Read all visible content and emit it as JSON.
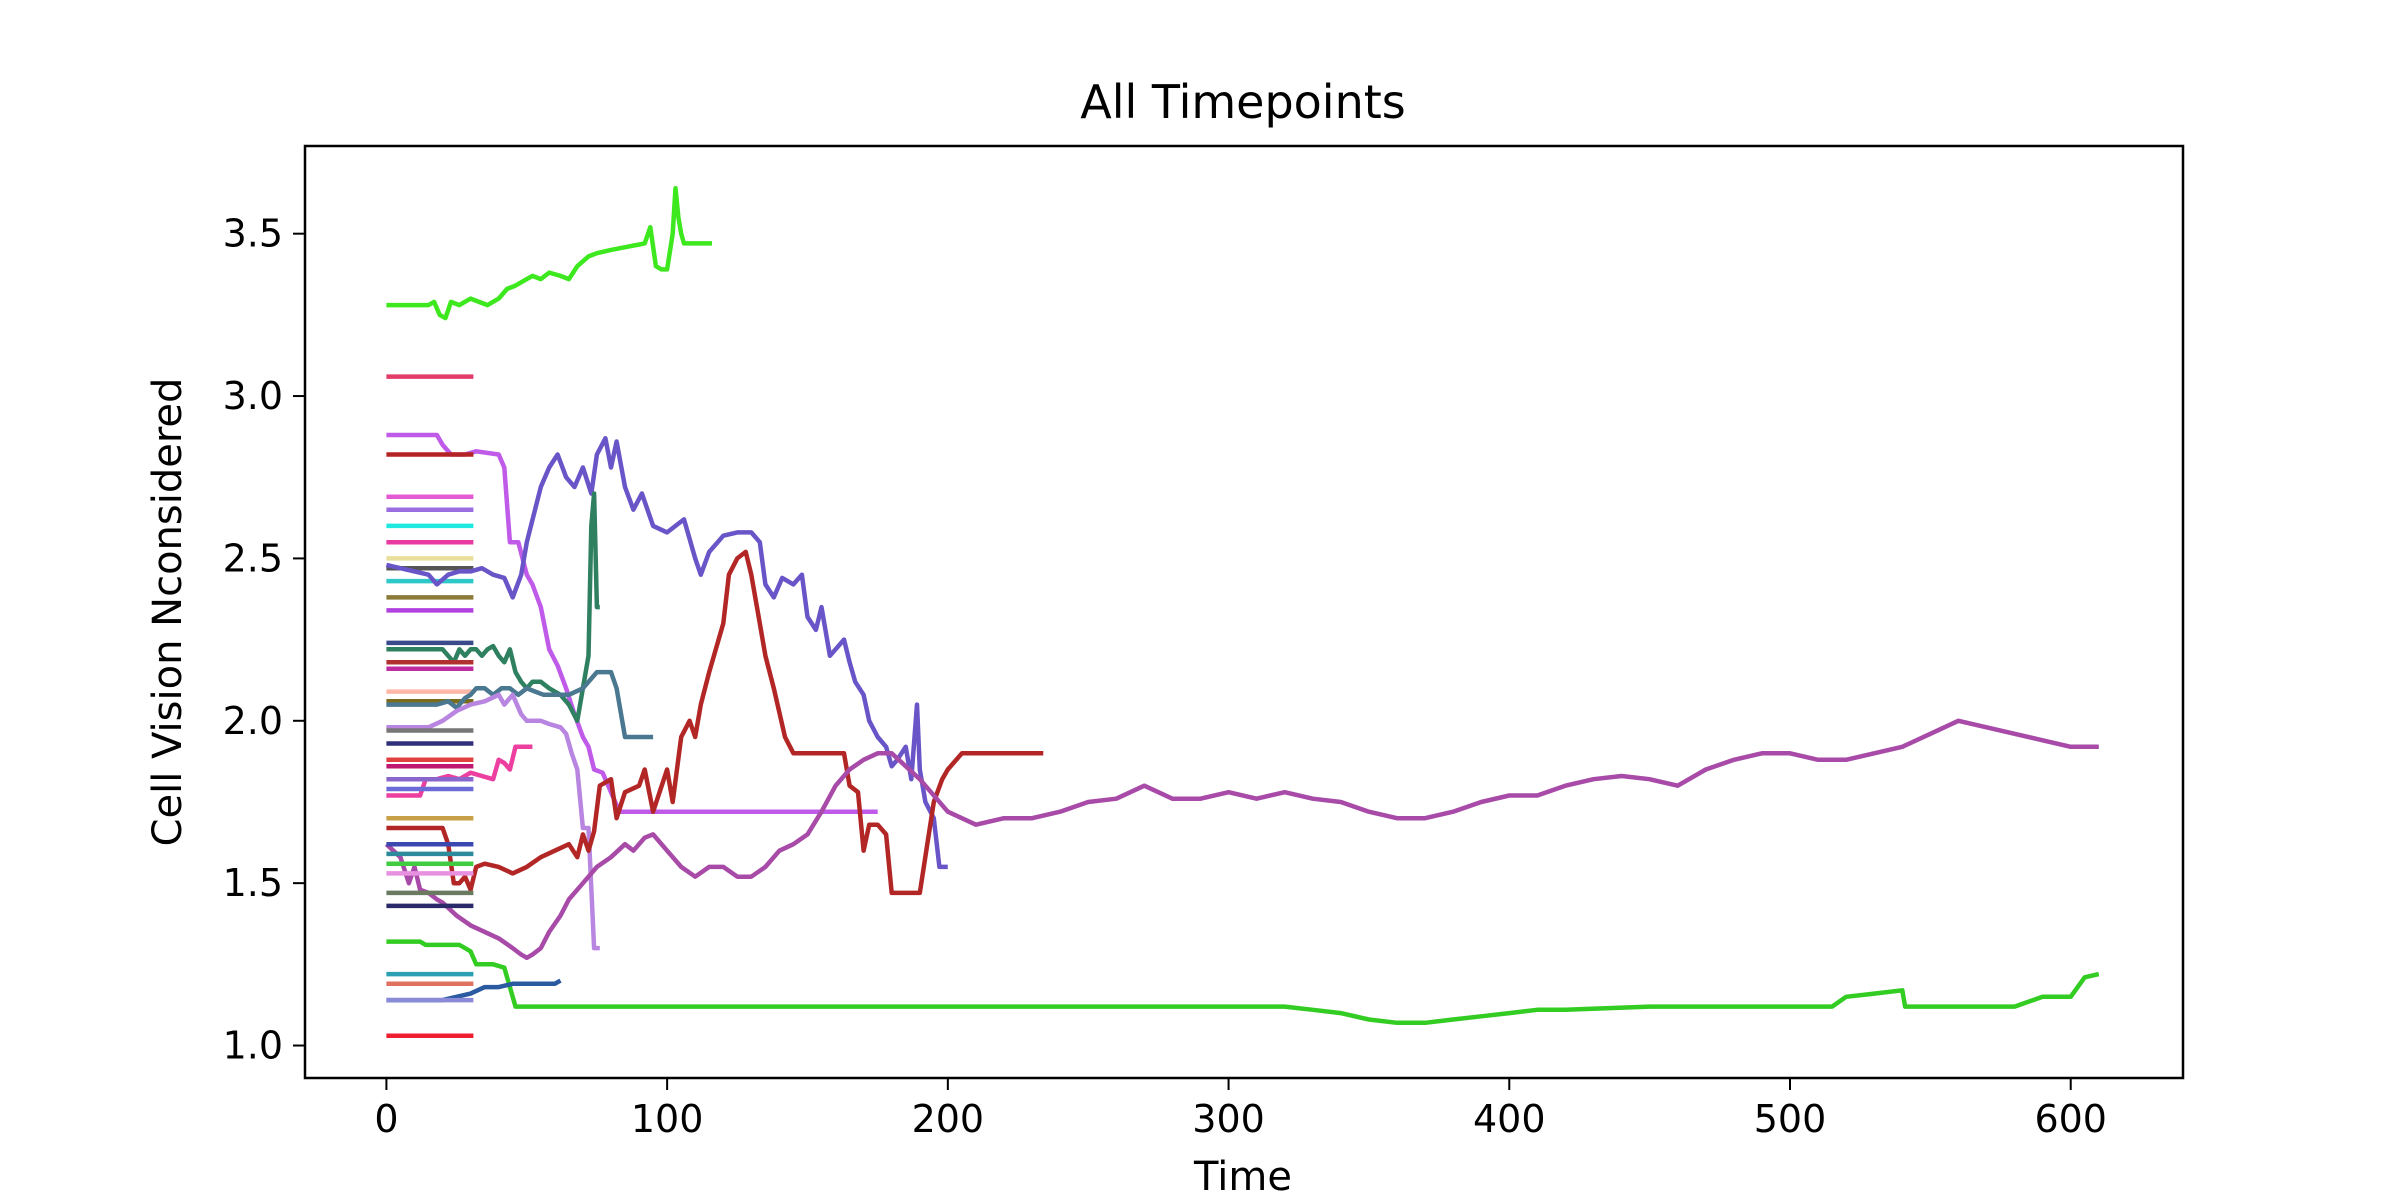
{
  "chart_data": {
    "type": "line",
    "title": "All Timepoints",
    "xlabel": "Time",
    "ylabel": "Cell Vision Nconsidered",
    "xlim": [
      -29,
      640
    ],
    "ylim": [
      0.9,
      3.77
    ],
    "xticks": [
      0,
      100,
      200,
      300,
      400,
      500,
      600
    ],
    "yticks": [
      1.0,
      1.5,
      2.0,
      2.5,
      3.0,
      3.5
    ],
    "grid": false,
    "legend": "none",
    "series": [
      {
        "color": "#3ee81f",
        "x": [
          0,
          15,
          17,
          19,
          21,
          23,
          26,
          30,
          33,
          36,
          40,
          43,
          46,
          50,
          52,
          55,
          58,
          62,
          65,
          68,
          72,
          75,
          80,
          86,
          92,
          94,
          96,
          98,
          100,
          102,
          103,
          104,
          105,
          106,
          108,
          112,
          116
        ],
        "y": [
          3.28,
          3.28,
          3.29,
          3.25,
          3.24,
          3.29,
          3.28,
          3.3,
          3.29,
          3.28,
          3.3,
          3.33,
          3.34,
          3.36,
          3.37,
          3.36,
          3.38,
          3.37,
          3.36,
          3.4,
          3.43,
          3.44,
          3.45,
          3.46,
          3.47,
          3.52,
          3.4,
          3.39,
          3.39,
          3.5,
          3.64,
          3.55,
          3.5,
          3.47,
          3.47,
          3.47,
          3.47
        ]
      },
      {
        "color": "#e23c69",
        "x": [
          0,
          31
        ],
        "y": [
          3.06,
          3.06
        ]
      },
      {
        "color": "#c05ae8",
        "x": [
          0,
          18,
          20,
          23,
          28,
          32,
          40,
          42,
          44,
          47,
          50,
          52,
          55,
          58,
          61,
          64,
          67,
          70,
          72,
          74,
          77,
          80,
          83,
          86,
          90,
          100,
          120,
          150,
          175
        ],
        "y": [
          2.88,
          2.88,
          2.85,
          2.82,
          2.82,
          2.83,
          2.82,
          2.78,
          2.55,
          2.55,
          2.45,
          2.42,
          2.35,
          2.22,
          2.17,
          2.1,
          2.02,
          1.95,
          1.92,
          1.85,
          1.84,
          1.78,
          1.72,
          1.72,
          1.72,
          1.72,
          1.72,
          1.72,
          1.72
        ]
      },
      {
        "color": "#b52424",
        "x": [
          0,
          31
        ],
        "y": [
          2.82,
          2.82
        ]
      },
      {
        "color": "#e45ad5",
        "x": [
          0,
          31
        ],
        "y": [
          2.69,
          2.69
        ]
      },
      {
        "color": "#9a6de0",
        "x": [
          0,
          31
        ],
        "y": [
          2.65,
          2.65
        ]
      },
      {
        "color": "#1ee8e0",
        "x": [
          0,
          31
        ],
        "y": [
          2.6,
          2.6
        ]
      },
      {
        "color": "#e83aa0",
        "x": [
          0,
          31
        ],
        "y": [
          2.55,
          2.55
        ]
      },
      {
        "color": "#e8e09a",
        "x": [
          0,
          31
        ],
        "y": [
          2.5,
          2.5
        ]
      },
      {
        "color": "#555555",
        "x": [
          0,
          31
        ],
        "y": [
          2.47,
          2.47
        ]
      },
      {
        "color": "#2ec8c8",
        "x": [
          0,
          31
        ],
        "y": [
          2.43,
          2.43
        ]
      },
      {
        "color": "#8b7a3a",
        "x": [
          0,
          31
        ],
        "y": [
          2.38,
          2.38
        ]
      },
      {
        "color": "#b040e0",
        "x": [
          0,
          31
        ],
        "y": [
          2.34,
          2.34
        ]
      },
      {
        "color": "#6a55c8",
        "x": [
          0,
          15,
          18,
          22,
          26,
          30,
          34,
          38,
          42,
          45,
          48,
          50,
          55,
          58,
          61,
          64,
          67,
          70,
          73,
          75,
          78,
          80,
          82,
          85,
          88,
          91,
          95,
          100,
          103,
          106,
          110,
          112,
          115,
          118,
          120,
          125,
          130,
          133,
          135,
          138,
          141,
          145,
          148,
          150,
          153,
          155,
          158,
          160,
          163,
          165,
          167,
          170,
          172,
          175,
          178,
          180,
          182,
          185,
          187,
          189,
          190,
          192,
          195,
          197,
          200
        ],
        "y": [
          2.48,
          2.45,
          2.42,
          2.45,
          2.46,
          2.46,
          2.47,
          2.45,
          2.44,
          2.38,
          2.45,
          2.55,
          2.72,
          2.78,
          2.82,
          2.75,
          2.72,
          2.78,
          2.7,
          2.82,
          2.87,
          2.78,
          2.86,
          2.72,
          2.65,
          2.7,
          2.6,
          2.58,
          2.6,
          2.62,
          2.5,
          2.45,
          2.52,
          2.55,
          2.57,
          2.58,
          2.58,
          2.55,
          2.42,
          2.38,
          2.44,
          2.42,
          2.45,
          2.32,
          2.28,
          2.35,
          2.2,
          2.22,
          2.25,
          2.18,
          2.12,
          2.08,
          2.0,
          1.95,
          1.92,
          1.86,
          1.88,
          1.92,
          1.82,
          2.05,
          1.85,
          1.75,
          1.7,
          1.55,
          1.55
        ]
      },
      {
        "color": "#2f8060",
        "x": [
          0,
          20,
          22,
          24,
          26,
          28,
          30,
          32,
          34,
          36,
          38,
          40,
          42,
          44,
          46,
          48,
          50,
          52,
          55,
          58,
          62,
          65,
          68,
          70,
          72,
          73,
          74,
          75,
          76
        ],
        "y": [
          2.22,
          2.22,
          2.2,
          2.18,
          2.22,
          2.2,
          2.22,
          2.22,
          2.2,
          2.22,
          2.23,
          2.2,
          2.18,
          2.22,
          2.15,
          2.12,
          2.1,
          2.12,
          2.12,
          2.1,
          2.08,
          2.05,
          2.0,
          2.1,
          2.2,
          2.6,
          2.7,
          2.35,
          2.35
        ]
      },
      {
        "color": "#3a4a8a",
        "x": [
          0,
          31
        ],
        "y": [
          2.24,
          2.24
        ]
      },
      {
        "color": "#b13030",
        "x": [
          0,
          31
        ],
        "y": [
          2.18,
          2.18
        ]
      },
      {
        "color": "#c02ca0",
        "x": [
          0,
          31
        ],
        "y": [
          2.16,
          2.16
        ]
      },
      {
        "color": "#ffb8a8",
        "x": [
          0,
          31
        ],
        "y": [
          2.09,
          2.09
        ]
      },
      {
        "color": "#7a6c1a",
        "x": [
          0,
          31
        ],
        "y": [
          2.06,
          2.06
        ]
      },
      {
        "color": "#4a7890",
        "x": [
          0,
          18,
          22,
          25,
          28,
          30,
          32,
          35,
          38,
          41,
          44,
          47,
          50,
          53,
          56,
          60,
          65,
          70,
          75,
          80,
          82,
          85,
          88,
          90,
          95
        ],
        "y": [
          2.05,
          2.05,
          2.06,
          2.04,
          2.07,
          2.08,
          2.1,
          2.1,
          2.08,
          2.1,
          2.1,
          2.08,
          2.1,
          2.09,
          2.08,
          2.08,
          2.08,
          2.1,
          2.15,
          2.15,
          2.1,
          1.95,
          1.95,
          1.95,
          1.95
        ]
      },
      {
        "color": "#b886e0",
        "x": [
          0,
          15,
          20,
          25,
          30,
          35,
          40,
          42,
          45,
          48,
          50,
          52,
          55,
          58,
          62,
          64,
          66,
          68,
          70,
          72,
          74,
          76
        ],
        "y": [
          1.98,
          1.98,
          2.0,
          2.03,
          2.05,
          2.06,
          2.08,
          2.05,
          2.08,
          2.02,
          2.0,
          2.0,
          2.0,
          1.99,
          1.98,
          1.96,
          1.9,
          1.85,
          1.67,
          1.67,
          1.3,
          1.3
        ]
      },
      {
        "color": "#777777",
        "x": [
          0,
          31
        ],
        "y": [
          1.97,
          1.97
        ]
      },
      {
        "color": "#30307a",
        "x": [
          0,
          31
        ],
        "y": [
          1.93,
          1.93
        ]
      },
      {
        "color": "#e04040",
        "x": [
          0,
          31
        ],
        "y": [
          1.88,
          1.88
        ]
      },
      {
        "color": "#c01870",
        "x": [
          0,
          31
        ],
        "y": [
          1.86,
          1.86
        ]
      },
      {
        "color": "#ec3f9f",
        "x": [
          0,
          12,
          14,
          18,
          22,
          26,
          30,
          34,
          38,
          40,
          42,
          44,
          46,
          48,
          52
        ],
        "y": [
          1.77,
          1.77,
          1.82,
          1.82,
          1.83,
          1.82,
          1.84,
          1.83,
          1.82,
          1.88,
          1.87,
          1.85,
          1.92,
          1.92,
          1.92
        ]
      },
      {
        "color": "#8866cc",
        "x": [
          0,
          31
        ],
        "y": [
          1.82,
          1.82
        ]
      },
      {
        "color": "#6a6ad8",
        "x": [
          0,
          31
        ],
        "y": [
          1.79,
          1.79
        ]
      },
      {
        "color": "#c8a048",
        "x": [
          0,
          31
        ],
        "y": [
          1.7,
          1.7
        ]
      },
      {
        "color": "#b32626",
        "x": [
          0,
          20,
          22,
          24,
          26,
          28,
          30,
          32,
          35,
          40,
          45,
          50,
          55,
          60,
          65,
          68,
          70,
          72,
          74,
          76,
          80,
          82,
          85,
          90,
          92,
          95,
          100,
          102,
          105,
          108,
          110,
          112,
          115,
          120,
          122,
          125,
          128,
          130,
          133,
          135,
          138,
          142,
          145,
          150,
          155,
          160,
          163,
          165,
          168,
          170,
          172,
          175,
          178,
          180,
          185,
          190,
          195,
          198,
          200,
          205,
          210,
          220,
          234
        ],
        "y": [
          1.67,
          1.67,
          1.62,
          1.5,
          1.5,
          1.52,
          1.48,
          1.55,
          1.56,
          1.55,
          1.53,
          1.55,
          1.58,
          1.6,
          1.62,
          1.58,
          1.65,
          1.6,
          1.66,
          1.8,
          1.82,
          1.7,
          1.78,
          1.8,
          1.85,
          1.72,
          1.85,
          1.75,
          1.95,
          2.0,
          1.95,
          2.05,
          2.15,
          2.3,
          2.45,
          2.5,
          2.52,
          2.45,
          2.3,
          2.2,
          2.1,
          1.95,
          1.9,
          1.9,
          1.9,
          1.9,
          1.9,
          1.8,
          1.78,
          1.6,
          1.68,
          1.68,
          1.65,
          1.47,
          1.47,
          1.47,
          1.75,
          1.82,
          1.85,
          1.9,
          1.9,
          1.9,
          1.9
        ]
      },
      {
        "color": "#a84aa8",
        "x": [
          0,
          5,
          8,
          10,
          12,
          15,
          18,
          20,
          25,
          30,
          35,
          40,
          45,
          48,
          50,
          52,
          55,
          58,
          62,
          65,
          68,
          70,
          72,
          75,
          80,
          85,
          88,
          92,
          95,
          100,
          105,
          110,
          115,
          120,
          125,
          130,
          135,
          140,
          145,
          150,
          155,
          160,
          165,
          170,
          175,
          180,
          190,
          200,
          210,
          220,
          230,
          240,
          250,
          260,
          270,
          280,
          290,
          300,
          310,
          320,
          330,
          340,
          350,
          360,
          370,
          380,
          390,
          400,
          410,
          420,
          430,
          440,
          450,
          460,
          470,
          480,
          490,
          500,
          510,
          520,
          530,
          540,
          550,
          560,
          570,
          580,
          590,
          600,
          610
        ],
        "y": [
          1.62,
          1.58,
          1.5,
          1.55,
          1.48,
          1.47,
          1.45,
          1.44,
          1.4,
          1.37,
          1.35,
          1.33,
          1.3,
          1.28,
          1.27,
          1.28,
          1.3,
          1.35,
          1.4,
          1.45,
          1.48,
          1.5,
          1.52,
          1.55,
          1.58,
          1.62,
          1.6,
          1.64,
          1.65,
          1.6,
          1.55,
          1.52,
          1.55,
          1.55,
          1.52,
          1.52,
          1.55,
          1.6,
          1.62,
          1.65,
          1.72,
          1.8,
          1.85,
          1.88,
          1.9,
          1.9,
          1.82,
          1.72,
          1.68,
          1.7,
          1.7,
          1.72,
          1.75,
          1.76,
          1.8,
          1.76,
          1.76,
          1.78,
          1.76,
          1.78,
          1.76,
          1.75,
          1.72,
          1.7,
          1.7,
          1.72,
          1.75,
          1.77,
          1.77,
          1.8,
          1.82,
          1.83,
          1.82,
          1.8,
          1.85,
          1.88,
          1.9,
          1.9,
          1.88,
          1.88,
          1.9,
          1.92,
          1.96,
          2.0,
          1.98,
          1.96,
          1.94,
          1.92,
          1.92
        ]
      },
      {
        "color": "#3a48b0",
        "x": [
          0,
          31
        ],
        "y": [
          1.62,
          1.62
        ]
      },
      {
        "color": "#2c8a9a",
        "x": [
          0,
          31
        ],
        "y": [
          1.59,
          1.59
        ]
      },
      {
        "color": "#40cc40",
        "x": [
          0,
          31
        ],
        "y": [
          1.56,
          1.56
        ]
      },
      {
        "color": "#e890e0",
        "x": [
          0,
          31
        ],
        "y": [
          1.53,
          1.53
        ]
      },
      {
        "color": "#6a7a60",
        "x": [
          0,
          31
        ],
        "y": [
          1.47,
          1.47
        ]
      },
      {
        "color": "#2a2a6a",
        "x": [
          0,
          31
        ],
        "y": [
          1.43,
          1.43
        ]
      },
      {
        "color": "#33cc22",
        "x": [
          0,
          12,
          14,
          26,
          28,
          30,
          32,
          35,
          38,
          42,
          44,
          46,
          60,
          100,
          200,
          300,
          320,
          330,
          340,
          350,
          360,
          370,
          380,
          390,
          400,
          410,
          420,
          450,
          500,
          515,
          520,
          530,
          540,
          541,
          545,
          560,
          580,
          590,
          595,
          600,
          605,
          610
        ],
        "y": [
          1.32,
          1.32,
          1.31,
          1.31,
          1.3,
          1.29,
          1.25,
          1.25,
          1.25,
          1.24,
          1.18,
          1.12,
          1.12,
          1.12,
          1.12,
          1.12,
          1.12,
          1.11,
          1.1,
          1.08,
          1.07,
          1.07,
          1.08,
          1.09,
          1.1,
          1.11,
          1.11,
          1.12,
          1.12,
          1.12,
          1.15,
          1.16,
          1.17,
          1.12,
          1.12,
          1.12,
          1.12,
          1.15,
          1.15,
          1.15,
          1.21,
          1.22
        ]
      },
      {
        "color": "#2aa0b0",
        "x": [
          0,
          31
        ],
        "y": [
          1.22,
          1.22
        ]
      },
      {
        "color": "#e07060",
        "x": [
          0,
          31
        ],
        "y": [
          1.19,
          1.19
        ]
      },
      {
        "color": "#2a5aa0",
        "x": [
          0,
          20,
          25,
          30,
          35,
          40,
          45,
          50,
          55,
          60,
          62
        ],
        "y": [
          1.14,
          1.14,
          1.15,
          1.16,
          1.18,
          1.18,
          1.19,
          1.19,
          1.19,
          1.19,
          1.2
        ]
      },
      {
        "color": "#8a8ad8",
        "x": [
          0,
          31
        ],
        "y": [
          1.14,
          1.14
        ]
      },
      {
        "color": "#ee1e2e",
        "x": [
          0,
          31
        ],
        "y": [
          1.03,
          1.03
        ]
      }
    ]
  }
}
